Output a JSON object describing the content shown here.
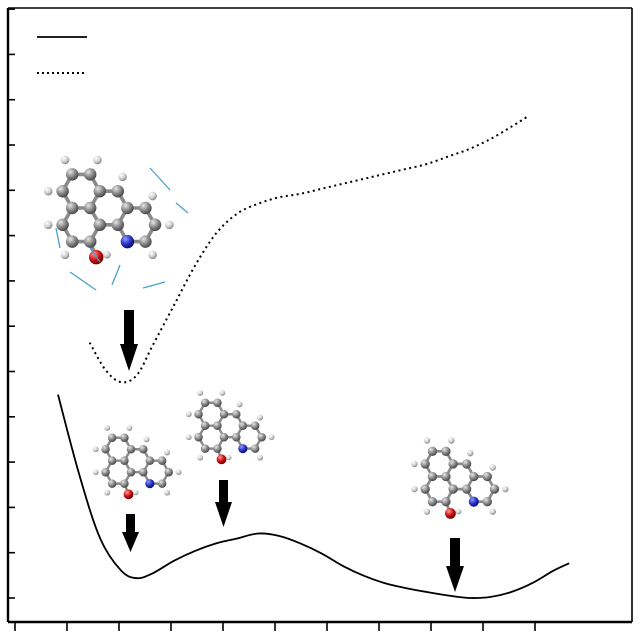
{
  "chart_data": {
    "type": "line",
    "title": "",
    "xlabel": "",
    "ylabel": "",
    "xlim": [
      0,
      1
    ],
    "ylim": [
      0,
      1
    ],
    "grid": false,
    "legend": {
      "placement": "top-left",
      "entries": [
        {
          "series": "solid",
          "text": ""
        },
        {
          "series": "dotted",
          "text": ""
        }
      ]
    },
    "series": [
      {
        "style": "solid",
        "color": "#000000",
        "x": [
          0.0,
          0.04,
          0.08,
          0.12,
          0.15,
          0.18,
          0.22,
          0.26,
          0.3,
          0.34,
          0.38,
          0.42,
          0.46,
          0.5,
          0.54,
          0.58,
          0.62,
          0.66,
          0.7,
          0.74,
          0.78,
          0.82,
          0.86,
          0.9,
          0.94,
          0.97
        ],
        "y": [
          0.41,
          0.25,
          0.12,
          0.055,
          0.04,
          0.05,
          0.075,
          0.095,
          0.11,
          0.12,
          0.13,
          0.125,
          0.11,
          0.09,
          0.065,
          0.045,
          0.03,
          0.02,
          0.012,
          0.005,
          0.0,
          0.002,
          0.012,
          0.03,
          0.055,
          0.07
        ]
      },
      {
        "style": "dotted",
        "color": "#000000",
        "x": [
          0.06,
          0.09,
          0.12,
          0.15,
          0.18,
          0.22,
          0.26,
          0.3,
          0.34,
          0.38,
          0.42,
          0.46,
          0.5,
          0.54,
          0.58,
          0.62,
          0.66,
          0.7,
          0.74,
          0.78,
          0.82,
          0.86,
          0.89
        ],
        "y": [
          0.515,
          0.46,
          0.435,
          0.45,
          0.51,
          0.59,
          0.67,
          0.735,
          0.775,
          0.795,
          0.808,
          0.815,
          0.825,
          0.835,
          0.845,
          0.855,
          0.865,
          0.875,
          0.89,
          0.905,
          0.925,
          0.95,
          0.97
        ]
      }
    ],
    "x_tick_count": 11,
    "y_tick_count": 14,
    "annotations": [
      {
        "kind": "molecule",
        "name": "excited-state-molecule",
        "x": 0.12,
        "y": 0.47,
        "vibration_arrows": true
      },
      {
        "kind": "molecule",
        "name": "enol-minimum-molecule",
        "x": 0.12,
        "y": 0.045
      },
      {
        "kind": "molecule",
        "name": "transition-state-molecule",
        "x": 0.29,
        "y": 0.125
      },
      {
        "kind": "molecule",
        "name": "keto-minimum-molecule",
        "x": 0.7,
        "y": 0.0
      }
    ]
  }
}
